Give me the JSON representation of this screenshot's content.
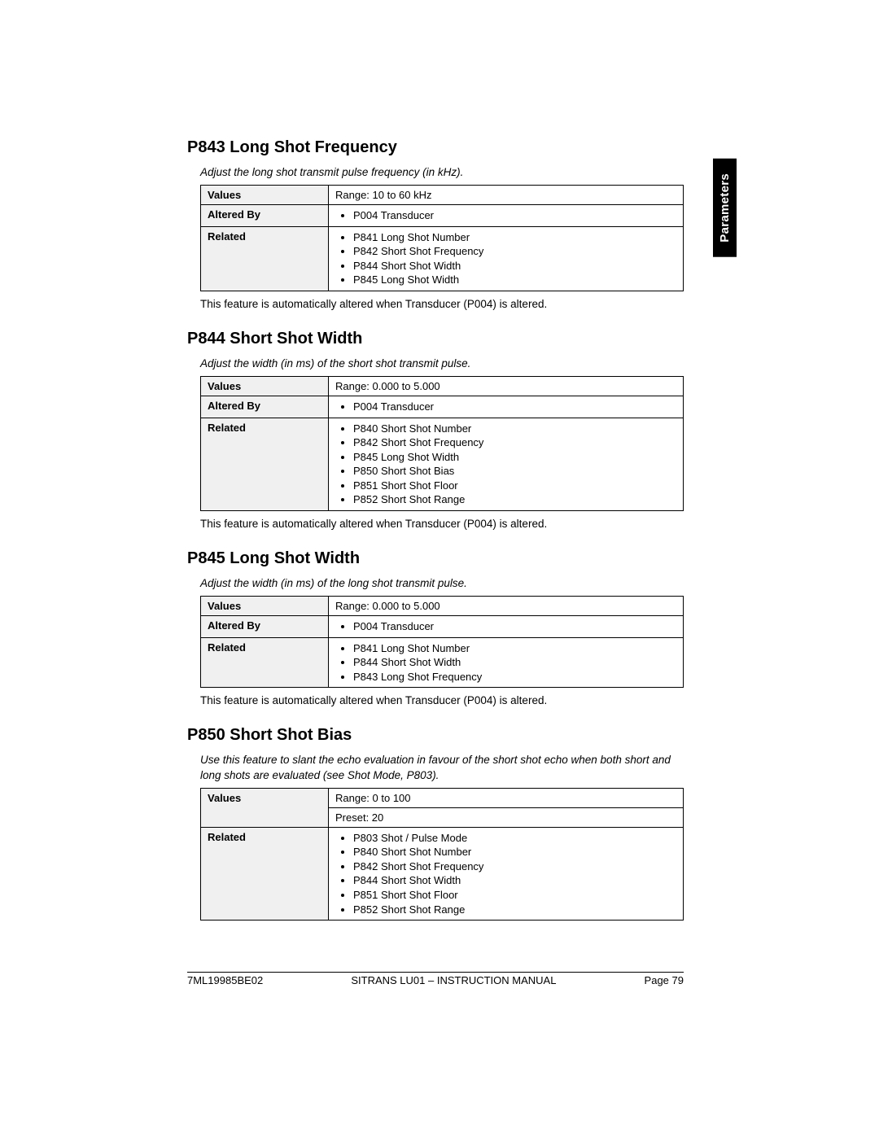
{
  "side_tab": "Parameters",
  "sections": [
    {
      "title": "P843 Long Shot Frequency",
      "desc": "Adjust the long shot transmit pulse frequency (in kHz).",
      "rows": [
        {
          "label": "Values",
          "type": "text",
          "value": "Range: 10 to 60 kHz"
        },
        {
          "label": "Altered By",
          "type": "list",
          "items": [
            "P004 Transducer"
          ]
        },
        {
          "label": "Related",
          "type": "list",
          "items": [
            "P841 Long Shot Number",
            "P842 Short Shot Frequency",
            "P844 Short Shot Width",
            "P845 Long Shot Width"
          ]
        }
      ],
      "note": "This feature is automatically altered when Transducer (P004) is altered."
    },
    {
      "title": "P844 Short Shot Width",
      "desc": "Adjust the width (in ms) of the short shot transmit pulse.",
      "rows": [
        {
          "label": "Values",
          "type": "text",
          "value": "Range: 0.000 to 5.000"
        },
        {
          "label": "Altered By",
          "type": "list",
          "items": [
            "P004 Transducer"
          ]
        },
        {
          "label": "Related",
          "type": "list",
          "items": [
            "P840 Short Shot Number",
            "P842 Short Shot Frequency",
            "P845 Long Shot Width",
            "P850 Short Shot Bias",
            "P851 Short Shot Floor",
            "P852 Short Shot Range"
          ]
        }
      ],
      "note": "This feature is automatically altered when Transducer (P004) is altered."
    },
    {
      "title": "P845 Long Shot Width",
      "desc": "Adjust the width (in ms) of the long shot transmit pulse.",
      "rows": [
        {
          "label": "Values",
          "type": "text",
          "value": "Range: 0.000 to 5.000"
        },
        {
          "label": "Altered By",
          "type": "list",
          "items": [
            "P004 Transducer"
          ]
        },
        {
          "label": "Related",
          "type": "list",
          "items": [
            "P841 Long Shot Number",
            "P844 Short Shot Width",
            "P843 Long Shot Frequency"
          ]
        }
      ],
      "note": "This feature is automatically altered when Transducer (P004) is altered."
    },
    {
      "title": "P850 Short Shot Bias",
      "desc": "Use this feature to slant the echo evaluation in favour of the short shot echo when both short and long shots are evaluated (see Shot Mode, P803).",
      "rows": [
        {
          "label": "Values",
          "type": "multi",
          "values": [
            "Range: 0 to 100",
            "Preset: 20"
          ]
        },
        {
          "label": "Related",
          "type": "list",
          "items": [
            "P803 Shot / Pulse Mode",
            "P840 Short Shot Number",
            "P842 Short Shot Frequency",
            "P844 Short Shot Width",
            "P851 Short Shot Floor",
            "P852 Short Shot Range"
          ]
        }
      ],
      "note": null
    }
  ],
  "footer": {
    "left": "7ML19985BE02",
    "center": "SITRANS LU01 – INSTRUCTION MANUAL",
    "right": "Page 79"
  }
}
